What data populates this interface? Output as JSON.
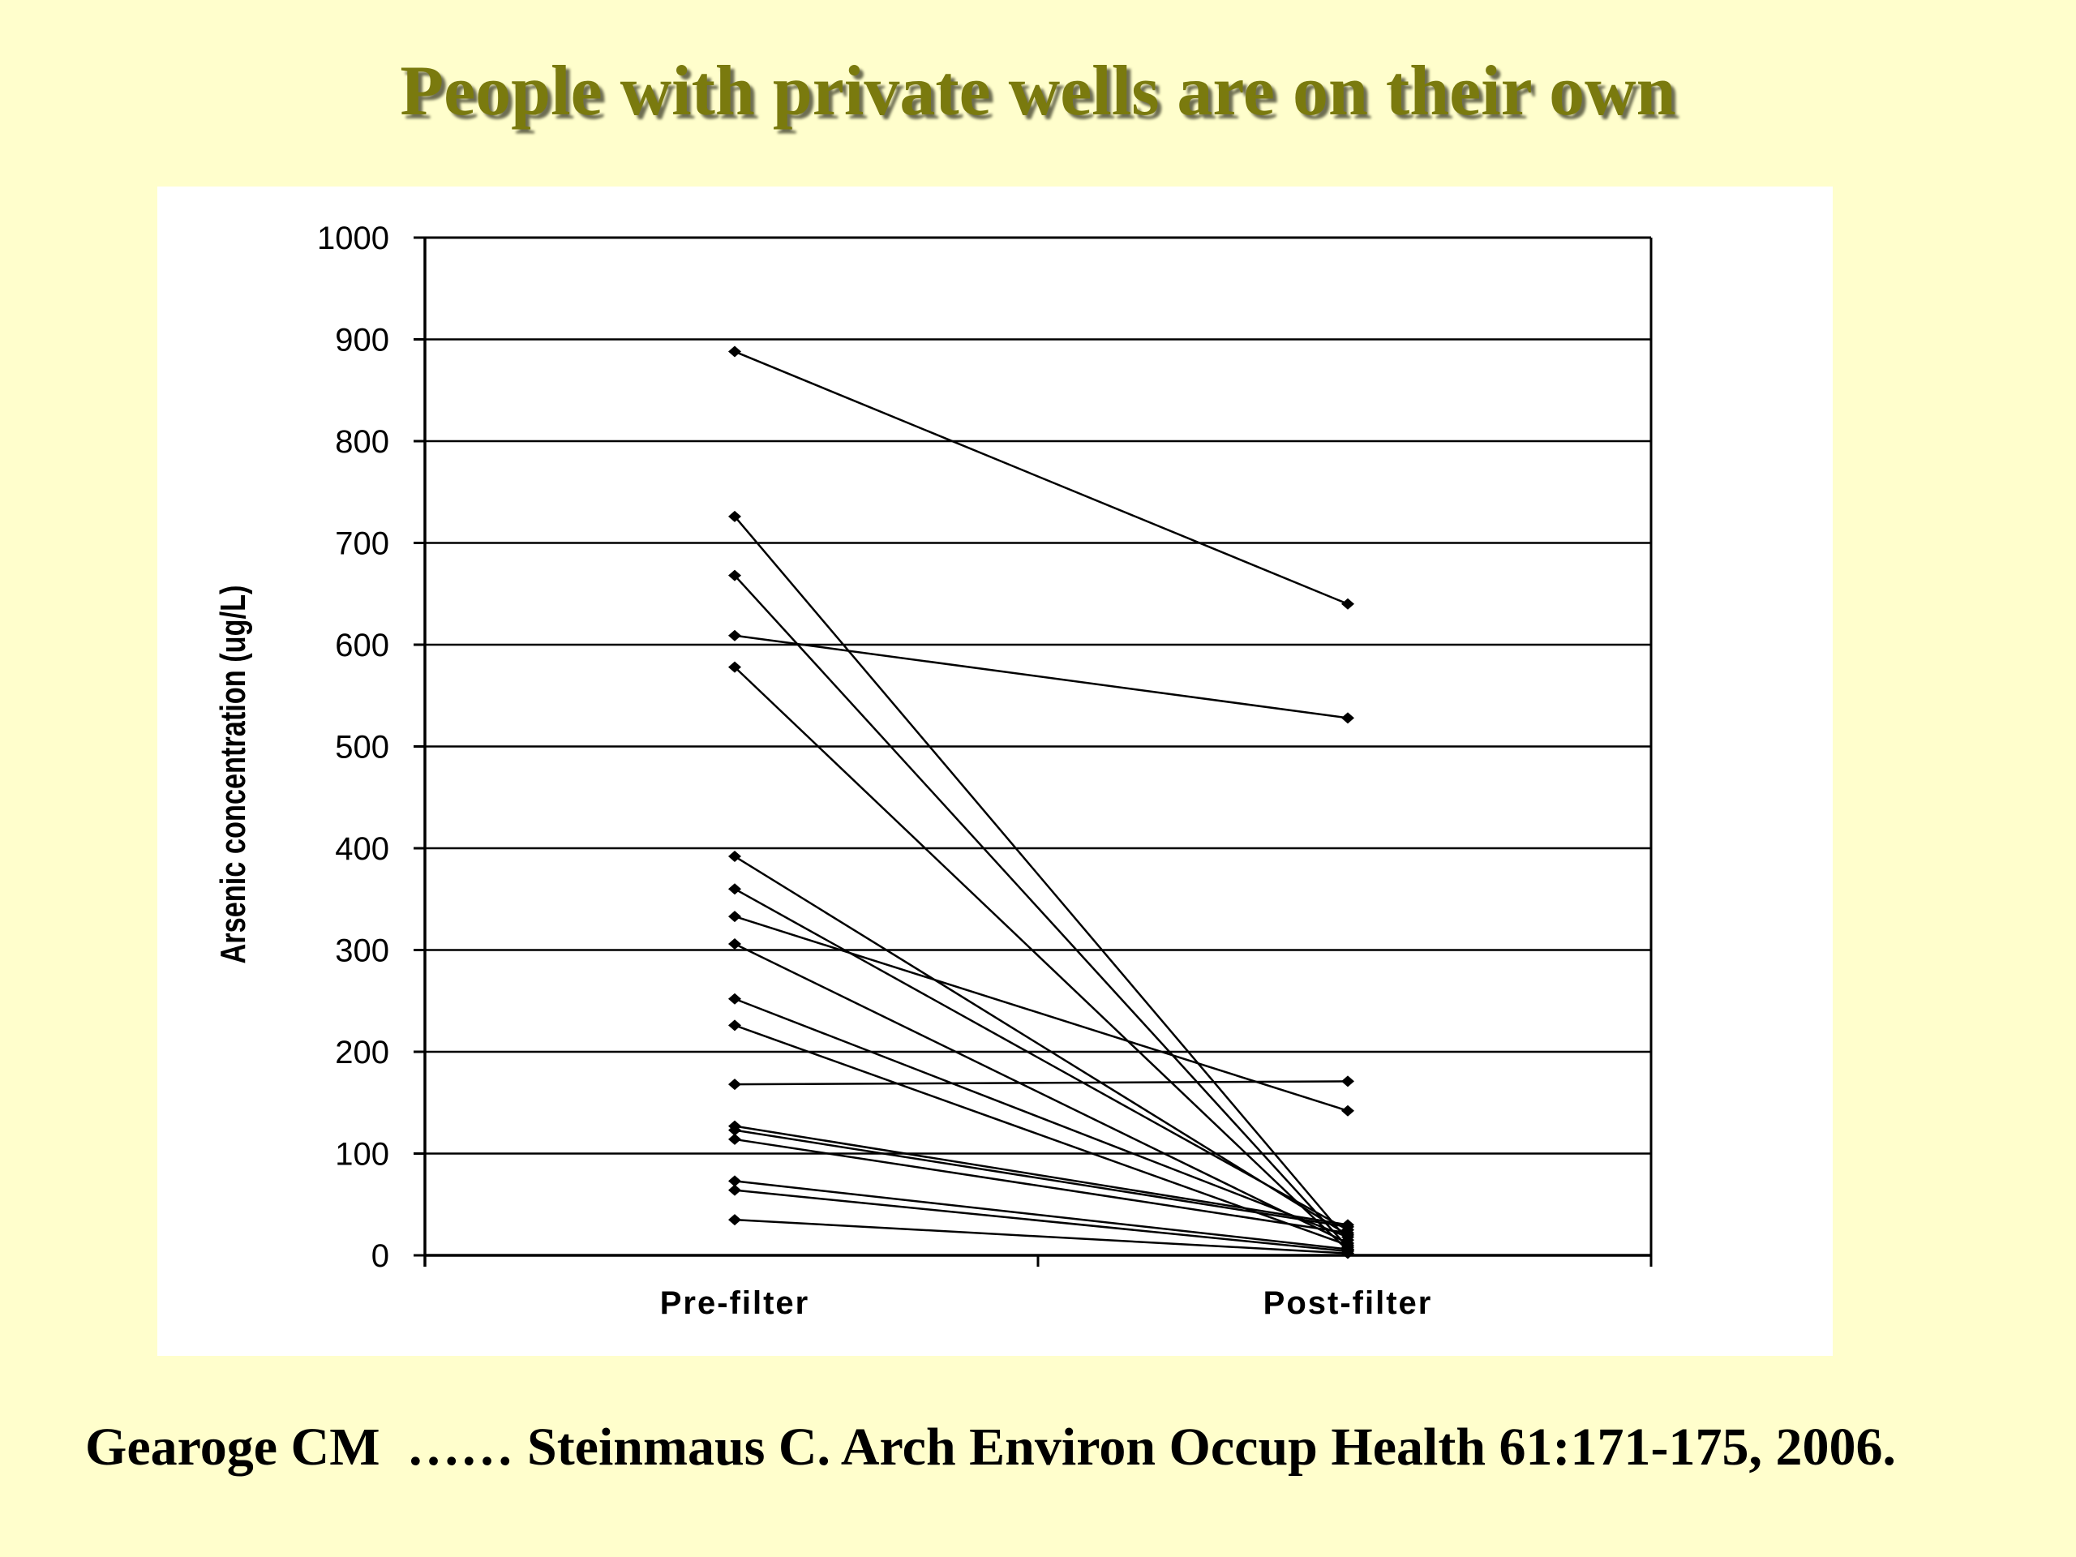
{
  "slide": {
    "title": "People with private wells are on their own",
    "citation": "Gearoge CM  …… Steinmaus C. Arch Environ Occup Health 61:171-175, 2006."
  },
  "colors": {
    "background": "#FFFECC",
    "title": "#7A7A0E",
    "title_shadow": "#6E6E52",
    "chart_panel": "#FFFFFF",
    "lines": "#000000"
  },
  "chart_data": {
    "type": "line",
    "title": "",
    "xlabel": "",
    "ylabel": "Arsenic concentration (ug/L)",
    "categories": [
      "Pre-filter",
      "Post-filter"
    ],
    "ylim": [
      0,
      1000
    ],
    "yticks": [
      0,
      100,
      200,
      300,
      400,
      500,
      600,
      700,
      800,
      900,
      1000
    ],
    "ytick_labels": [
      "0",
      "100",
      "200",
      "300",
      "400",
      "500",
      "600",
      "700",
      "800",
      "900",
      "1000"
    ],
    "grid": true,
    "legend": "none",
    "marker": "diamond",
    "series": [
      {
        "values": [
          888,
          640
        ]
      },
      {
        "values": [
          726,
          15
        ]
      },
      {
        "values": [
          668,
          8
        ]
      },
      {
        "values": [
          609,
          528
        ]
      },
      {
        "values": [
          578,
          5
        ]
      },
      {
        "values": [
          392,
          20
        ]
      },
      {
        "values": [
          360,
          25
        ]
      },
      {
        "values": [
          333,
          142
        ]
      },
      {
        "values": [
          306,
          12
        ]
      },
      {
        "values": [
          252,
          18
        ]
      },
      {
        "values": [
          226,
          10
        ]
      },
      {
        "values": [
          168,
          171
        ]
      },
      {
        "values": [
          127,
          30
        ]
      },
      {
        "values": [
          123,
          28
        ]
      },
      {
        "values": [
          114,
          22
        ]
      },
      {
        "values": [
          73,
          6
        ]
      },
      {
        "values": [
          64,
          4
        ]
      },
      {
        "values": [
          35,
          2
        ]
      }
    ]
  }
}
